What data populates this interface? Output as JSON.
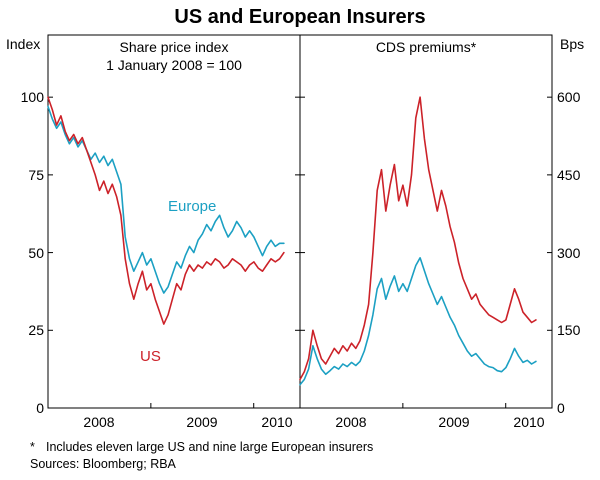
{
  "header": {
    "title": "US and European Insurers"
  },
  "axes": {
    "left_unit": "Index",
    "right_unit": "Bps"
  },
  "footer": {
    "footnote_marker": "*",
    "footnote_text": "Includes eleven large US and nine large European insurers",
    "sources": "Sources: Bloomberg; RBA"
  },
  "colors": {
    "us": "#cc2229",
    "europe": "#1ca0c3",
    "frame": "#000000"
  },
  "chart_data": [
    {
      "type": "line",
      "title": "Share price index",
      "subtitle": "1 January 2008 = 100",
      "ylabel": "Index",
      "ylim": [
        0,
        120
      ],
      "yticks": [
        0,
        25,
        50,
        75,
        100
      ],
      "x_start": 2008.0,
      "x_step": 0.0417,
      "x_max": 2010.45,
      "xlabels": [
        2008,
        2009,
        2010
      ],
      "xtick_marks": [
        2009,
        2010
      ],
      "legend_position": "inline-labels",
      "grid": false,
      "series": [
        {
          "name": "Europe",
          "color": "#1ca0c3",
          "values": [
            97,
            93,
            90,
            92,
            88,
            85,
            87,
            84,
            86,
            83,
            80,
            82,
            79,
            81,
            78,
            80,
            76,
            72,
            55,
            48,
            44,
            47,
            50,
            46,
            48,
            44,
            40,
            37,
            39,
            43,
            47,
            45,
            49,
            52,
            50,
            54,
            56,
            59,
            57,
            60,
            62,
            58,
            55,
            57,
            60,
            58,
            55,
            57,
            55,
            52,
            49,
            52,
            54,
            52,
            53,
            53
          ]
        },
        {
          "name": "US",
          "color": "#cc2229",
          "values": [
            100,
            96,
            91,
            94,
            89,
            86,
            88,
            85,
            87,
            83,
            79,
            75,
            70,
            73,
            69,
            72,
            68,
            62,
            48,
            40,
            35,
            40,
            44,
            38,
            40,
            35,
            31,
            27,
            30,
            35,
            40,
            38,
            43,
            46,
            44,
            46,
            45,
            47,
            46,
            48,
            47,
            45,
            46,
            48,
            47,
            46,
            44,
            46,
            47,
            45,
            44,
            46,
            48,
            47,
            48,
            50
          ]
        }
      ]
    },
    {
      "type": "line",
      "title": "CDS premiums*",
      "subtitle": "",
      "ylabel": "Bps",
      "ylim": [
        0,
        720
      ],
      "yticks": [
        0,
        150,
        300,
        450,
        600
      ],
      "x_start": 2008.0,
      "x_step": 0.0417,
      "x_max": 2010.45,
      "xlabels": [
        2008,
        2009,
        2010
      ],
      "xtick_marks": [
        2009,
        2010
      ],
      "legend_position": "none",
      "grid": false,
      "series": [
        {
          "name": "Europe",
          "color": "#1ca0c3",
          "values": [
            45,
            55,
            75,
            120,
            95,
            75,
            65,
            72,
            80,
            75,
            85,
            80,
            88,
            82,
            90,
            110,
            140,
            180,
            230,
            250,
            210,
            235,
            255,
            225,
            240,
            225,
            250,
            275,
            290,
            265,
            240,
            220,
            200,
            215,
            195,
            175,
            160,
            140,
            125,
            110,
            100,
            105,
            95,
            85,
            80,
            78,
            72,
            70,
            78,
            95,
            115,
            100,
            88,
            92,
            85,
            90
          ]
        },
        {
          "name": "US",
          "color": "#cc2229",
          "values": [
            55,
            70,
            95,
            150,
            120,
            95,
            85,
            100,
            115,
            105,
            120,
            110,
            125,
            115,
            130,
            160,
            200,
            300,
            420,
            460,
            380,
            430,
            470,
            400,
            430,
            390,
            450,
            560,
            600,
            520,
            460,
            420,
            380,
            420,
            390,
            350,
            320,
            280,
            250,
            230,
            210,
            220,
            200,
            190,
            180,
            175,
            170,
            165,
            170,
            200,
            230,
            210,
            185,
            175,
            165,
            170
          ]
        }
      ]
    }
  ]
}
